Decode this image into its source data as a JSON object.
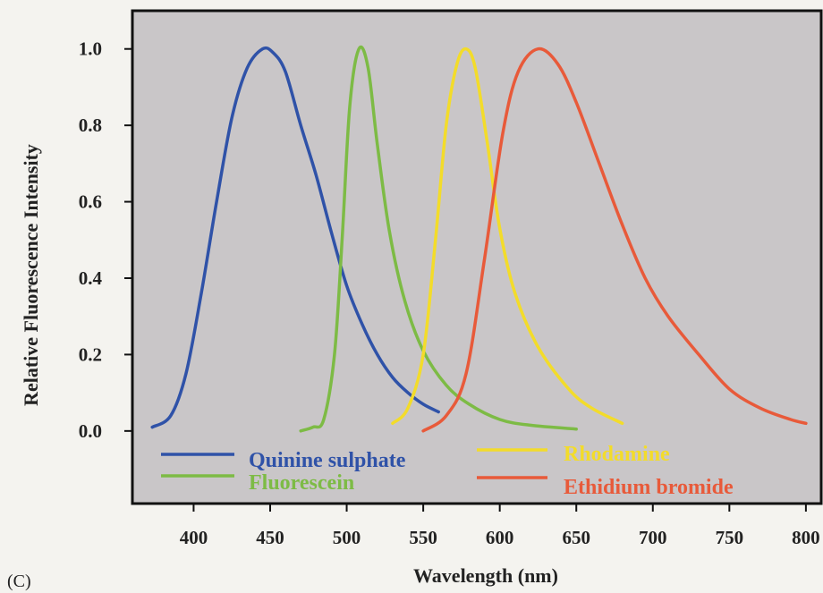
{
  "panel_label": "(C)",
  "chart_data": {
    "type": "line",
    "title": "",
    "xlabel": "Wavelength (nm)",
    "ylabel": "Relative Fluorescence Intensity",
    "xlim": [
      360,
      810
    ],
    "ylim": [
      -0.19,
      1.1
    ],
    "xticks": [
      400,
      450,
      500,
      550,
      600,
      650,
      700,
      750,
      800
    ],
    "yticks": [
      0.0,
      0.2,
      0.4,
      0.6,
      0.8,
      1.0
    ],
    "ytick_labels": [
      "0.0",
      "0.2",
      "0.4",
      "0.6",
      "0.8",
      "1.0"
    ],
    "grid": false,
    "background": "#c9c6c8",
    "legend_placement": "bottom (inside plot area, two columns)",
    "series": [
      {
        "name": "Quinine sulphate",
        "color": "#2f52a8",
        "points": [
          [
            373,
            0.01
          ],
          [
            385,
            0.04
          ],
          [
            395,
            0.15
          ],
          [
            405,
            0.36
          ],
          [
            415,
            0.6
          ],
          [
            425,
            0.82
          ],
          [
            435,
            0.95
          ],
          [
            445,
            1.0
          ],
          [
            452,
            0.99
          ],
          [
            460,
            0.94
          ],
          [
            470,
            0.8
          ],
          [
            480,
            0.67
          ],
          [
            490,
            0.52
          ],
          [
            500,
            0.38
          ],
          [
            510,
            0.28
          ],
          [
            520,
            0.2
          ],
          [
            530,
            0.14
          ],
          [
            540,
            0.1
          ],
          [
            550,
            0.07
          ],
          [
            560,
            0.05
          ]
        ]
      },
      {
        "name": "Fluorescein",
        "color": "#7dbb45",
        "points": [
          [
            470,
            0.0
          ],
          [
            478,
            0.01
          ],
          [
            485,
            0.03
          ],
          [
            492,
            0.2
          ],
          [
            497,
            0.5
          ],
          [
            502,
            0.85
          ],
          [
            508,
            1.0
          ],
          [
            514,
            0.95
          ],
          [
            520,
            0.75
          ],
          [
            528,
            0.52
          ],
          [
            538,
            0.34
          ],
          [
            550,
            0.21
          ],
          [
            565,
            0.12
          ],
          [
            580,
            0.07
          ],
          [
            600,
            0.03
          ],
          [
            620,
            0.015
          ],
          [
            650,
            0.005
          ]
        ]
      },
      {
        "name": "Rhodamine",
        "color": "#f3dc2a",
        "points": [
          [
            530,
            0.02
          ],
          [
            540,
            0.06
          ],
          [
            550,
            0.2
          ],
          [
            558,
            0.5
          ],
          [
            565,
            0.8
          ],
          [
            572,
            0.96
          ],
          [
            578,
            1.0
          ],
          [
            584,
            0.95
          ],
          [
            592,
            0.75
          ],
          [
            600,
            0.53
          ],
          [
            610,
            0.36
          ],
          [
            625,
            0.22
          ],
          [
            645,
            0.11
          ],
          [
            660,
            0.06
          ],
          [
            680,
            0.02
          ]
        ]
      },
      {
        "name": "Ethidium bromide",
        "color": "#e85a3a",
        "points": [
          [
            550,
            0.0
          ],
          [
            565,
            0.04
          ],
          [
            578,
            0.15
          ],
          [
            590,
            0.45
          ],
          [
            602,
            0.78
          ],
          [
            612,
            0.94
          ],
          [
            625,
            1.0
          ],
          [
            638,
            0.96
          ],
          [
            650,
            0.86
          ],
          [
            665,
            0.7
          ],
          [
            680,
            0.54
          ],
          [
            695,
            0.4
          ],
          [
            710,
            0.3
          ],
          [
            730,
            0.2
          ],
          [
            750,
            0.11
          ],
          [
            770,
            0.06
          ],
          [
            790,
            0.03
          ],
          [
            800,
            0.02
          ]
        ]
      }
    ]
  }
}
